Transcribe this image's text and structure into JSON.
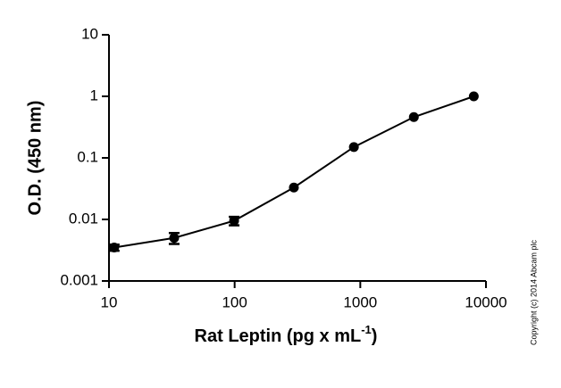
{
  "chart_data": {
    "type": "line",
    "x_label": "Rat Leptin (pg x mL",
    "x_label_sup": "-1",
    "x_label_end": ")",
    "y_label": "O.D. (450 nm)",
    "copyright": "Copyright (c) 2014 Abcam plc",
    "x": [
      11,
      33,
      99,
      296,
      889,
      2667,
      8000
    ],
    "series": [
      {
        "name": "Rat Leptin",
        "color": "#000000",
        "values": [
          0.0035,
          0.005,
          0.0095,
          0.033,
          0.15,
          0.46,
          1.0
        ],
        "errors": [
          0.0004,
          0.001,
          0.0015,
          null,
          null,
          null,
          null
        ]
      }
    ],
    "xscale": "log",
    "yscale": "log",
    "xlim": [
      10,
      10000
    ],
    "ylim": [
      0.001,
      10
    ],
    "xticks": [
      10,
      100,
      1000,
      10000
    ],
    "yticks": [
      0.001,
      0.01,
      0.1,
      1,
      10
    ],
    "grid": false
  }
}
